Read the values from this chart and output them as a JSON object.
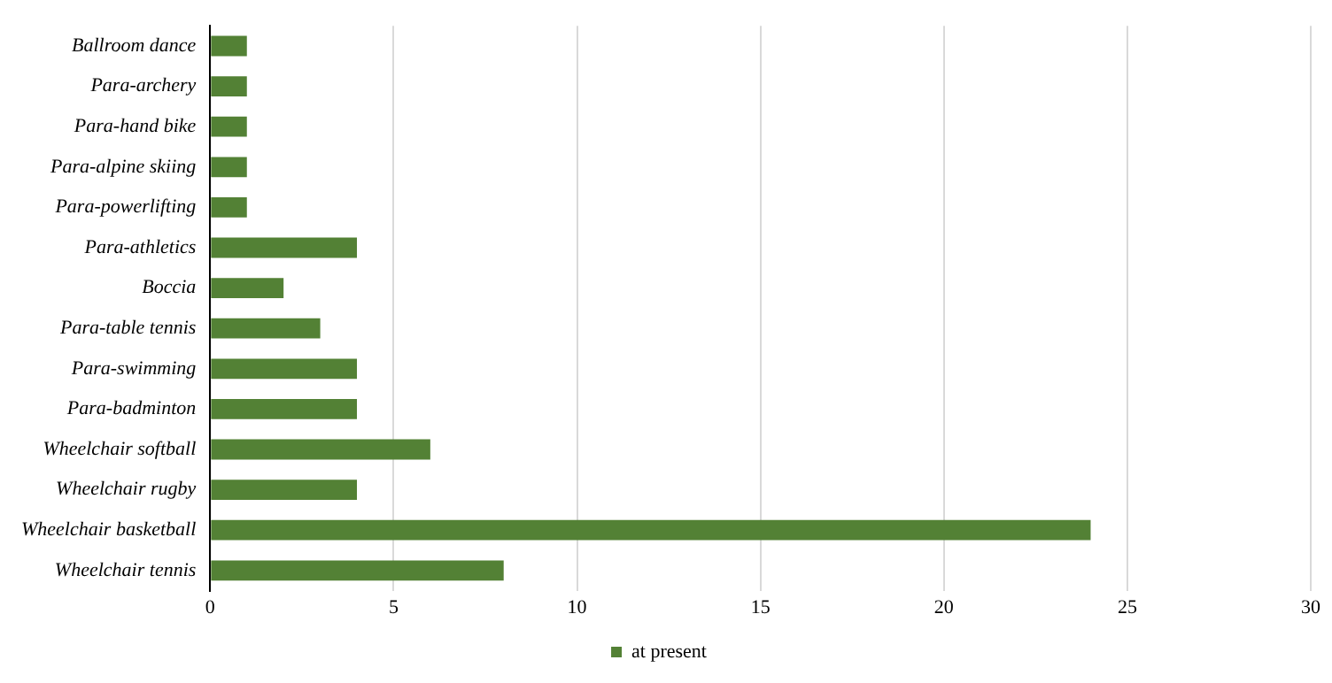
{
  "chart_data": {
    "type": "bar",
    "orientation": "horizontal",
    "categories": [
      "Ballroom dance",
      "Para-archery",
      "Para-hand bike",
      "Para-alpine skiing",
      "Para-powerlifting",
      "Para-athletics",
      "Boccia",
      "Para-table tennis",
      "Para-swimming",
      "Para-badminton",
      "Wheelchair softball",
      "Wheelchair rugby",
      "Wheelchair basketball",
      "Wheelchair tennis"
    ],
    "series": [
      {
        "name": "at present",
        "color": "#538135",
        "values": [
          1,
          1,
          1,
          1,
          1,
          4,
          2,
          3,
          4,
          4,
          6,
          4,
          24,
          8
        ]
      }
    ],
    "xlim": [
      0,
      30
    ],
    "xticks": [
      0,
      5,
      10,
      15,
      20,
      25,
      30
    ],
    "grid": "x",
    "legend": "bottom"
  }
}
